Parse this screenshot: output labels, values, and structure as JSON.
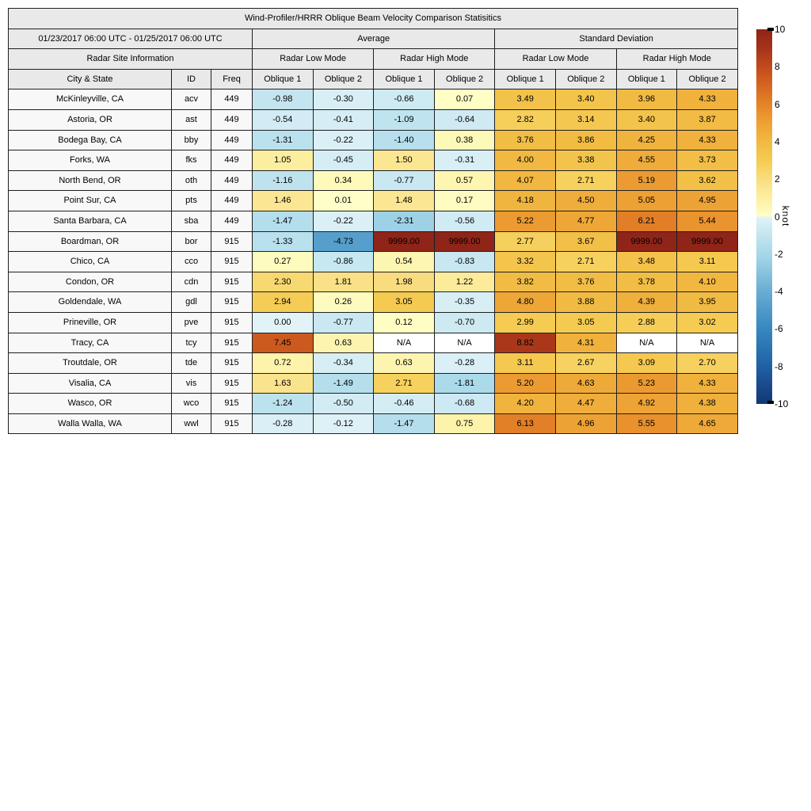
{
  "title": "Wind-Profiler/HRRR Oblique Beam Velocity Comparison Statisitics",
  "header": {
    "date_range": "01/23/2017 06:00 UTC - 01/25/2017 06:00 UTC",
    "group_average": "Average",
    "group_std": "Standard Deviation",
    "site_info": "Radar Site Information",
    "mode_low": "Radar Low Mode",
    "mode_high": "Radar High Mode",
    "col_city": "City & State",
    "col_id": "ID",
    "col_freq": "Freq",
    "col_ob1": "Oblique 1",
    "col_ob2": "Oblique 2"
  },
  "colors": {
    "border": "#1f1f1f",
    "header_bg": "#e9e9e9",
    "site_bg": "#f8f8f8",
    "na_bg": "#ffffff"
  },
  "colorbar": {
    "unit": "knot",
    "min": -10,
    "max": 10,
    "clip_value": 9999,
    "ticks": [
      10,
      8,
      6,
      4,
      2,
      0,
      -2,
      -4,
      -6,
      -8,
      -10
    ],
    "na_color": "#ffffff",
    "warm_anchors": [
      [
        0,
        "#feffc8"
      ],
      [
        0.5,
        "#fdf7b4"
      ],
      [
        1,
        "#fcefa0"
      ],
      [
        1.5,
        "#fbe692"
      ],
      [
        2,
        "#f9dc7e"
      ],
      [
        2.5,
        "#f8d567"
      ],
      [
        3,
        "#f5cb52"
      ],
      [
        4,
        "#f1b941"
      ],
      [
        5,
        "#eda134"
      ],
      [
        6,
        "#e48428"
      ],
      [
        7,
        "#d5661f"
      ],
      [
        8,
        "#c24a1d"
      ],
      [
        9,
        "#a53319"
      ],
      [
        10,
        "#8f2418"
      ]
    ],
    "cool_anchors": [
      [
        -10,
        "#143672"
      ],
      [
        -9,
        "#1a4b8c"
      ],
      [
        -8,
        "#2061a6"
      ],
      [
        -7,
        "#2a74b2"
      ],
      [
        -6,
        "#3787c0"
      ],
      [
        -5,
        "#4f9aca"
      ],
      [
        -4,
        "#69add3"
      ],
      [
        -3,
        "#88c3de"
      ],
      [
        -2,
        "#a6d8e9"
      ],
      [
        -1.5,
        "#b4deec"
      ],
      [
        -1,
        "#c3e5f0"
      ],
      [
        -0.5,
        "#d3ecf4"
      ],
      [
        0,
        "#e2f3f8"
      ]
    ]
  },
  "chart_data": {
    "type": "table",
    "title": "Wind-Profiler/HRRR Oblique Beam Velocity Comparison Statisitics",
    "subtitle": "01/23/2017 06:00 UTC - 01/25/2017 06:00 UTC",
    "value_unit": "knot",
    "color_scale": {
      "type": "diverging",
      "domain": [
        -10,
        10
      ],
      "legend_position": "right"
    },
    "column_groups": [
      {
        "label": "Radar Site Information",
        "columns": [
          "City & State",
          "ID",
          "Freq"
        ]
      },
      {
        "label": "Average",
        "subgroups": [
          {
            "label": "Radar Low Mode",
            "columns": [
              "Oblique 1",
              "Oblique 2"
            ]
          },
          {
            "label": "Radar High Mode",
            "columns": [
              "Oblique 1",
              "Oblique 2"
            ]
          }
        ]
      },
      {
        "label": "Standard Deviation",
        "subgroups": [
          {
            "label": "Radar Low Mode",
            "columns": [
              "Oblique 1",
              "Oblique 2"
            ]
          },
          {
            "label": "Radar High Mode",
            "columns": [
              "Oblique 1",
              "Oblique 2"
            ]
          }
        ]
      }
    ],
    "columns": [
      "City & State",
      "ID",
      "Freq",
      "Avg Low Oblique 1",
      "Avg Low Oblique 2",
      "Avg High Oblique 1",
      "Avg High Oblique 2",
      "SD Low Oblique 1",
      "SD Low Oblique 2",
      "SD High Oblique 1",
      "SD High Oblique 2"
    ],
    "rows": [
      [
        "McKinleyville, CA",
        "acv",
        "449",
        "-0.98",
        "-0.30",
        "-0.66",
        "0.07",
        "3.49",
        "3.40",
        "3.96",
        "4.33"
      ],
      [
        "Astoria, OR",
        "ast",
        "449",
        "-0.54",
        "-0.41",
        "-1.09",
        "-0.64",
        "2.82",
        "3.14",
        "3.40",
        "3.87"
      ],
      [
        "Bodega Bay, CA",
        "bby",
        "449",
        "-1.31",
        "-0.22",
        "-1.40",
        "0.38",
        "3.76",
        "3.86",
        "4.25",
        "4.33"
      ],
      [
        "Forks, WA",
        "fks",
        "449",
        "1.05",
        "-0.45",
        "1.50",
        "-0.31",
        "4.00",
        "3.38",
        "4.55",
        "3.73"
      ],
      [
        "North Bend, OR",
        "oth",
        "449",
        "-1.16",
        "0.34",
        "-0.77",
        "0.57",
        "4.07",
        "2.71",
        "5.19",
        "3.62"
      ],
      [
        "Point Sur, CA",
        "pts",
        "449",
        "1.46",
        "0.01",
        "1.48",
        "0.17",
        "4.18",
        "4.50",
        "5.05",
        "4.95"
      ],
      [
        "Santa Barbara, CA",
        "sba",
        "449",
        "-1.47",
        "-0.22",
        "-2.31",
        "-0.56",
        "5.22",
        "4.77",
        "6.21",
        "5.44"
      ],
      [
        "Boardman, OR",
        "bor",
        "915",
        "-1.33",
        "-4.73",
        "9999.00",
        "9999.00",
        "2.77",
        "3.67",
        "9999.00",
        "9999.00"
      ],
      [
        "Chico, CA",
        "cco",
        "915",
        "0.27",
        "-0.86",
        "0.54",
        "-0.83",
        "3.32",
        "2.71",
        "3.48",
        "3.11"
      ],
      [
        "Condon, OR",
        "cdn",
        "915",
        "2.30",
        "1.81",
        "1.98",
        "1.22",
        "3.82",
        "3.76",
        "3.78",
        "4.10"
      ],
      [
        "Goldendale, WA",
        "gdl",
        "915",
        "2.94",
        "0.26",
        "3.05",
        "-0.35",
        "4.80",
        "3.88",
        "4.39",
        "3.95"
      ],
      [
        "Prineville, OR",
        "pve",
        "915",
        "0.00",
        "-0.77",
        "0.12",
        "-0.70",
        "2.99",
        "3.05",
        "2.88",
        "3.02"
      ],
      [
        "Tracy, CA",
        "tcy",
        "915",
        "7.45",
        "0.63",
        "N/A",
        "N/A",
        "8.82",
        "4.31",
        "N/A",
        "N/A"
      ],
      [
        "Troutdale, OR",
        "tde",
        "915",
        "0.72",
        "-0.34",
        "0.63",
        "-0.28",
        "3.11",
        "2.67",
        "3.09",
        "2.70"
      ],
      [
        "Visalia, CA",
        "vis",
        "915",
        "1.63",
        "-1.49",
        "2.71",
        "-1.81",
        "5.20",
        "4.63",
        "5.23",
        "4.33"
      ],
      [
        "Wasco, OR",
        "wco",
        "915",
        "-1.24",
        "-0.50",
        "-0.46",
        "-0.68",
        "4.20",
        "4.47",
        "4.92",
        "4.38"
      ],
      [
        "Walla Walla, WA",
        "wwl",
        "915",
        "-0.28",
        "-0.12",
        "-1.47",
        "0.75",
        "6.13",
        "4.96",
        "5.55",
        "4.65"
      ]
    ]
  }
}
